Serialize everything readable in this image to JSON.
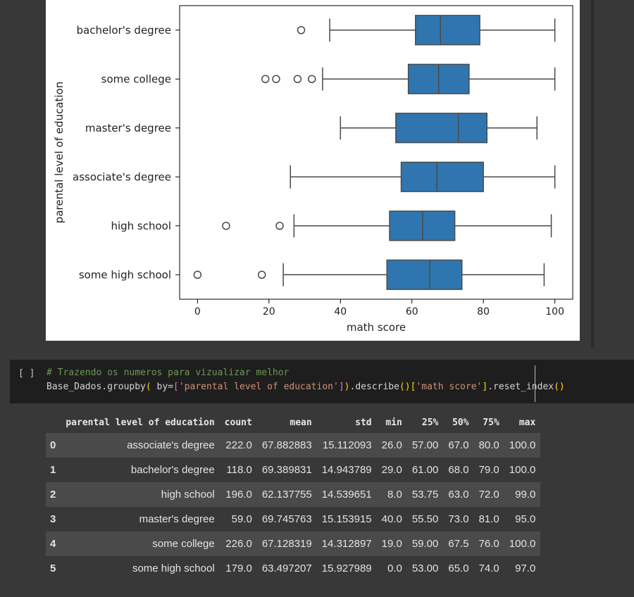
{
  "chart_data": {
    "type": "boxplot",
    "orientation": "horizontal",
    "xlabel": "math score",
    "ylabel": "parental level of education",
    "xlim": [
      -5,
      105
    ],
    "xticks": [
      0,
      20,
      40,
      60,
      80,
      100
    ],
    "box_color": "#2f76b0",
    "groups": [
      {
        "label": "bachelor's degree",
        "whisker_low": 37,
        "q1": 61,
        "median": 68,
        "q3": 79,
        "whisker_high": 100,
        "outliers": [
          29
        ]
      },
      {
        "label": "some college",
        "whisker_low": 35,
        "q1": 59,
        "median": 67.5,
        "q3": 76,
        "whisker_high": 100,
        "outliers": [
          19,
          22,
          28,
          32
        ]
      },
      {
        "label": "master's degree",
        "whisker_low": 40,
        "q1": 55.5,
        "median": 73,
        "q3": 81,
        "whisker_high": 95,
        "outliers": []
      },
      {
        "label": "associate's degree",
        "whisker_low": 26,
        "q1": 57,
        "median": 67,
        "q3": 80,
        "whisker_high": 100,
        "outliers": []
      },
      {
        "label": "high school",
        "whisker_low": 27,
        "q1": 53.75,
        "median": 63,
        "q3": 72,
        "whisker_high": 99,
        "outliers": [
          8,
          23
        ]
      },
      {
        "label": "some high school",
        "whisker_low": 24,
        "q1": 53,
        "median": 65,
        "q3": 74,
        "whisker_high": 97,
        "outliers": [
          0,
          18
        ]
      }
    ]
  },
  "code_cell": {
    "run_label": "[ ]",
    "comment": "# Trazendo os numeros para vizualizar melhor",
    "code_prefix": "Base_Dados.groupby",
    "code_p1": "(",
    "code_mid1": " by=",
    "code_b1": "[",
    "code_s1": "'parental level of education'",
    "code_b2": "]",
    "code_p2": ")",
    "code_mid2": ".describe",
    "code_p3": "()",
    "code_b3": "[",
    "code_s2": "'math score'",
    "code_b4": "]",
    "code_mid3": ".reset_index",
    "code_p4": "()"
  },
  "table": {
    "columns": [
      "",
      "parental level of education",
      "count",
      "mean",
      "std",
      "min",
      "25%",
      "50%",
      "75%",
      "max"
    ],
    "rows": [
      [
        "0",
        "associate's degree",
        "222.0",
        "67.882883",
        "15.112093",
        "26.0",
        "57.00",
        "67.0",
        "80.0",
        "100.0"
      ],
      [
        "1",
        "bachelor's degree",
        "118.0",
        "69.389831",
        "14.943789",
        "29.0",
        "61.00",
        "68.0",
        "79.0",
        "100.0"
      ],
      [
        "2",
        "high school",
        "196.0",
        "62.137755",
        "14.539651",
        "8.0",
        "53.75",
        "63.0",
        "72.0",
        "99.0"
      ],
      [
        "3",
        "master's degree",
        "59.0",
        "69.745763",
        "15.153915",
        "40.0",
        "55.50",
        "73.0",
        "81.0",
        "95.0"
      ],
      [
        "4",
        "some college",
        "226.0",
        "67.128319",
        "14.312897",
        "19.0",
        "59.00",
        "67.5",
        "76.0",
        "100.0"
      ],
      [
        "5",
        "some high school",
        "179.0",
        "63.497207",
        "15.927989",
        "0.0",
        "53.00",
        "65.0",
        "74.0",
        "97.0"
      ]
    ]
  }
}
